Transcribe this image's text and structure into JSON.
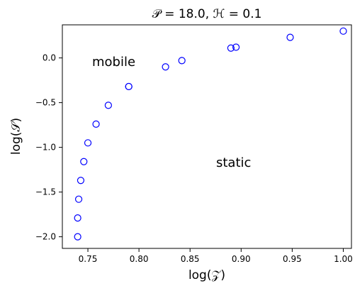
{
  "chart_data": {
    "type": "scatter",
    "title": "𝒫 = 18.0, ℋ = 0.1",
    "xlabel": "log(𝒵)",
    "ylabel": "log(𝒮)",
    "xlim": [
      0.725,
      1.008
    ],
    "ylim": [
      -2.13,
      0.37
    ],
    "x_ticks": [
      0.75,
      0.8,
      0.85,
      0.9,
      0.95,
      1.0
    ],
    "x_tick_labels": [
      "0.75",
      "0.80",
      "0.85",
      "0.90",
      "0.95",
      "1.00"
    ],
    "y_ticks": [
      0.0,
      -0.5,
      -1.0,
      -1.5,
      -2.0
    ],
    "y_tick_labels": [
      "0.0",
      "−0.5",
      "−1.0",
      "−1.5",
      "−2.0"
    ],
    "grid": false,
    "marker_color": "#0000ff",
    "marker": "open-circle",
    "annotations": [
      "mobile",
      "static"
    ],
    "series": [
      {
        "x": [
          0.74,
          0.74,
          0.741,
          0.743,
          0.746,
          0.75,
          0.758,
          0.77,
          0.79,
          0.79,
          0.826,
          0.842,
          0.89,
          0.895,
          0.948,
          1.0
        ],
        "y": [
          -2.0,
          -1.79,
          -1.58,
          -1.37,
          -1.16,
          -0.95,
          -0.74,
          -0.53,
          -0.32,
          -0.32,
          -0.1,
          -0.03,
          0.11,
          0.12,
          0.23,
          0.3
        ]
      }
    ]
  }
}
